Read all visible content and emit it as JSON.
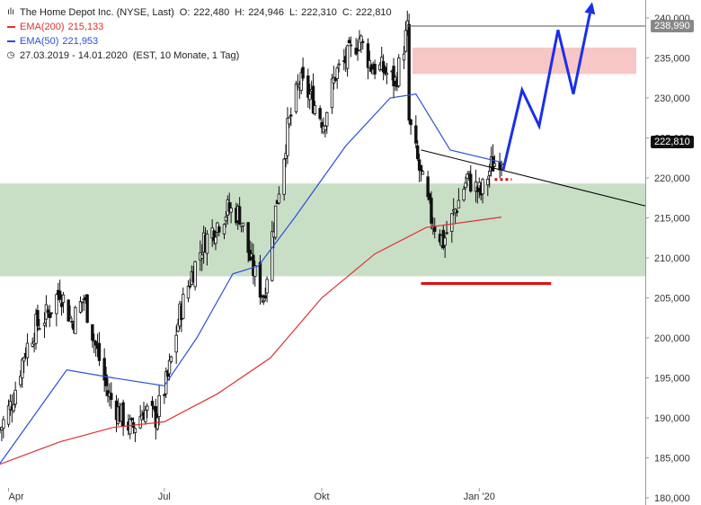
{
  "header": {
    "instrument": "The Home Depot Inc. (NYSE, Last)",
    "ohlc": [
      {
        "key": "O:",
        "value": "222,480"
      },
      {
        "key": "H:",
        "value": "224,946"
      },
      {
        "key": "L:",
        "value": "222,310"
      },
      {
        "key": "C:",
        "value": "222,810"
      }
    ],
    "ema200": {
      "label": "EMA(200)",
      "value": "215,133",
      "color": "#e03030"
    },
    "ema50": {
      "label": "EMA(50)",
      "value": "221,953",
      "color": "#2b4fd8"
    },
    "period": "27.03.2019 - 14.01.2020",
    "period_info": "(EST, 10 Monate, 1 Tag)",
    "icons": [
      "candlestick-icon",
      "clock-icon"
    ]
  },
  "price_tags": {
    "high_tag": "238,990",
    "last_tag": "222,810"
  },
  "chart_data": {
    "type": "candlestick",
    "title": "The Home Depot Inc. (NYSE, Last)",
    "x_tick_labels": [
      "Apr",
      "Jul",
      "Okt",
      "Jan '20"
    ],
    "y_tick_labels": [
      "180,000",
      "185,000",
      "190,000",
      "195,000",
      "200,000",
      "205,000",
      "210,000",
      "215,000",
      "220,000",
      "225,000",
      "230,000",
      "235,000",
      "240,000"
    ],
    "ylim": [
      180,
      240
    ],
    "grid": false,
    "close_series": [
      [
        "2019-03-27",
        188.5
      ],
      [
        "2019-04-03",
        192.0
      ],
      [
        "2019-04-10",
        198.0
      ],
      [
        "2019-04-17",
        201.5
      ],
      [
        "2019-04-24",
        203.0
      ],
      [
        "2019-05-01",
        206.0
      ],
      [
        "2019-05-08",
        202.0
      ],
      [
        "2019-05-15",
        205.0
      ],
      [
        "2019-05-22",
        199.0
      ],
      [
        "2019-05-29",
        193.0
      ],
      [
        "2019-06-05",
        190.5
      ],
      [
        "2019-06-12",
        188.5
      ],
      [
        "2019-06-19",
        191.0
      ],
      [
        "2019-06-26",
        190.0
      ],
      [
        "2019-07-03",
        195.0
      ],
      [
        "2019-07-10",
        203.0
      ],
      [
        "2019-07-17",
        208.0
      ],
      [
        "2019-07-24",
        212.0
      ],
      [
        "2019-07-31",
        214.0
      ],
      [
        "2019-08-07",
        216.0
      ],
      [
        "2019-08-14",
        215.5
      ],
      [
        "2019-08-21",
        209.0
      ],
      [
        "2019-08-28",
        205.0
      ],
      [
        "2019-09-04",
        216.0
      ],
      [
        "2019-09-11",
        226.0
      ],
      [
        "2019-09-18",
        232.0
      ],
      [
        "2019-09-25",
        230.0
      ],
      [
        "2019-10-02",
        227.0
      ],
      [
        "2019-10-09",
        233.0
      ],
      [
        "2019-10-16",
        235.0
      ],
      [
        "2019-10-23",
        237.5
      ],
      [
        "2019-10-30",
        234.0
      ],
      [
        "2019-11-06",
        233.5
      ],
      [
        "2019-11-13",
        232.0
      ],
      [
        "2019-11-20",
        238.5
      ],
      [
        "2019-11-21",
        227.0
      ],
      [
        "2019-11-27",
        221.0
      ],
      [
        "2019-12-04",
        215.0
      ],
      [
        "2019-12-11",
        212.0
      ],
      [
        "2019-12-18",
        216.0
      ],
      [
        "2019-12-25",
        220.0
      ],
      [
        "2020-01-02",
        218.0
      ],
      [
        "2020-01-08",
        221.5
      ],
      [
        "2020-01-14",
        222.8
      ]
    ],
    "ema200_series": [
      [
        "2019-03-27",
        184.2
      ],
      [
        "2019-05-01",
        187.0
      ],
      [
        "2019-06-01",
        188.8
      ],
      [
        "2019-07-01",
        189.5
      ],
      [
        "2019-08-01",
        193.0
      ],
      [
        "2019-09-01",
        197.5
      ],
      [
        "2019-10-01",
        205.0
      ],
      [
        "2019-11-01",
        210.5
      ],
      [
        "2019-12-01",
        213.8
      ],
      [
        "2020-01-14",
        215.1
      ]
    ],
    "ema50_series": [
      [
        "2019-03-27",
        184.3
      ],
      [
        "2019-04-15",
        190.0
      ],
      [
        "2019-05-05",
        196.0
      ],
      [
        "2019-06-01",
        195.0
      ],
      [
        "2019-07-01",
        194.0
      ],
      [
        "2019-07-20",
        200.0
      ],
      [
        "2019-08-10",
        208.0
      ],
      [
        "2019-08-25",
        209.0
      ],
      [
        "2019-09-15",
        215.0
      ],
      [
        "2019-10-15",
        224.0
      ],
      [
        "2019-11-10",
        230.0
      ],
      [
        "2019-11-25",
        230.5
      ],
      [
        "2019-12-15",
        223.5
      ],
      [
        "2020-01-14",
        221.95
      ]
    ],
    "zones": [
      {
        "kind": "support",
        "from": 207.7,
        "to": 219.3,
        "color": "#c8dfc6"
      },
      {
        "kind": "resistance",
        "from": 233.0,
        "to": 236.3,
        "color": "#f7c6c6"
      }
    ],
    "annotations": [
      {
        "kind": "hline",
        "y": 238.99,
        "from": "2019-11-20",
        "color": "#555555"
      },
      {
        "kind": "trendline",
        "from": [
          "2019-11-28",
          223.5
        ],
        "to": [
          "2020-04-07",
          216.5
        ],
        "color": "#000000"
      },
      {
        "kind": "support-line",
        "y": 206.8,
        "from": "2019-11-28",
        "to": "2020-02-12",
        "color": "#e01010"
      },
      {
        "kind": "dotted-line",
        "y": 219.8,
        "from": "2020-01-10",
        "to": "2020-01-20",
        "color": "#e01010"
      },
      {
        "kind": "projection-arrow",
        "points": [
          [
            "2020-01-15",
            221.0
          ],
          [
            "2020-01-26",
            231.0
          ],
          [
            "2020-02-05",
            226.5
          ],
          [
            "2020-02-16",
            238.5
          ],
          [
            "2020-02-25",
            230.5
          ],
          [
            "2020-03-07",
            242.0
          ]
        ],
        "color": "#1a2fe8"
      }
    ]
  }
}
